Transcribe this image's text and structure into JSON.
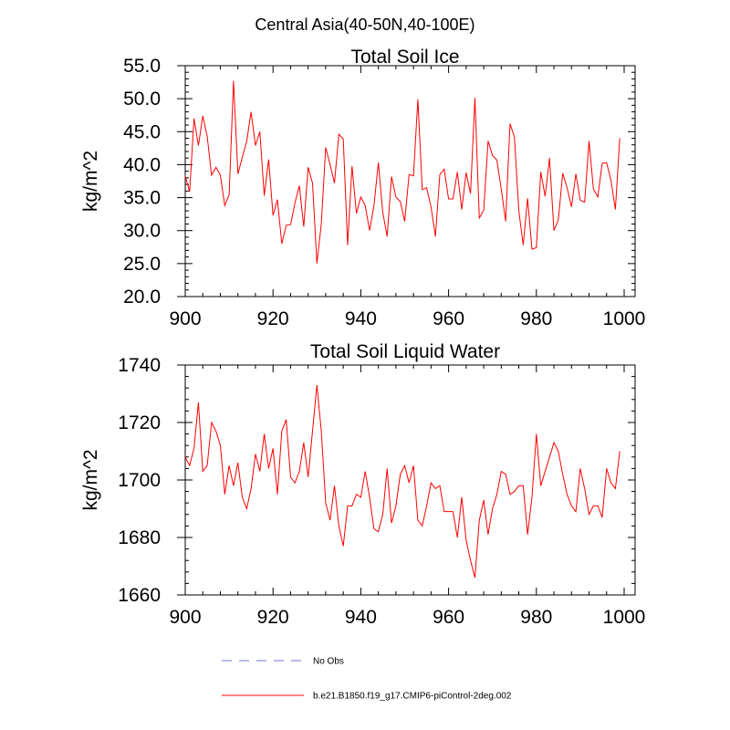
{
  "figure_title": "Central Asia(40-50N,40-100E)",
  "legend": {
    "entries": [
      {
        "label": "No Obs",
        "color": "#a0a0e8",
        "style": "dashed"
      },
      {
        "label": "b.e21.B1850.f19_g17.CMIP6-piControl-2deg.002",
        "color": "#ff0000",
        "style": "solid"
      }
    ]
  },
  "chart_data": [
    {
      "type": "line",
      "title": "Total Soil Ice",
      "xlabel": "",
      "ylabel": "kg/m^2",
      "xlim": [
        900,
        1000
      ],
      "ylim": [
        20,
        55
      ],
      "xticks": [
        900,
        920,
        940,
        960,
        980,
        1000
      ],
      "xtick_labels": [
        "900",
        "920",
        "940",
        "960",
        "980",
        "1000"
      ],
      "yticks": [
        20,
        25,
        30,
        35,
        40,
        45,
        50,
        55
      ],
      "ytick_labels": [
        "20.0",
        "25.0",
        "30.0",
        "35.0",
        "40.0",
        "45.0",
        "50.0",
        "55.0"
      ],
      "grid": false,
      "series": [
        {
          "name": "b.e21.B1850.f19_g17.CMIP6-piControl-2deg.002",
          "color": "#ff0000",
          "x": [
            900,
            901,
            902,
            903,
            904,
            905,
            906,
            907,
            908,
            909,
            910,
            911,
            912,
            913,
            914,
            915,
            916,
            917,
            918,
            919,
            920,
            921,
            922,
            923,
            924,
            925,
            926,
            927,
            928,
            929,
            930,
            931,
            932,
            933,
            934,
            935,
            936,
            937,
            938,
            939,
            940,
            941,
            942,
            943,
            944,
            945,
            946,
            947,
            948,
            949,
            950,
            951,
            952,
            953,
            954,
            955,
            956,
            957,
            958,
            959,
            960,
            961,
            962,
            963,
            964,
            965,
            966,
            967,
            968,
            969,
            970,
            971,
            972,
            973,
            974,
            975,
            976,
            977,
            978,
            979,
            980,
            981,
            982,
            983,
            984,
            985,
            986,
            987,
            988,
            989,
            990,
            991,
            992,
            993,
            994,
            995,
            996,
            997,
            998,
            999
          ],
          "values": [
            38.3,
            35.9,
            47.0,
            42.9,
            47.4,
            44.3,
            38.4,
            39.6,
            38.4,
            33.8,
            35.4,
            52.7,
            38.6,
            41.1,
            43.5,
            48.0,
            42.9,
            45.0,
            35.3,
            40.8,
            32.3,
            34.7,
            28.0,
            30.8,
            30.9,
            34.2,
            36.8,
            30.6,
            39.6,
            37.2,
            25.0,
            31.0,
            42.6,
            40.0,
            37.2,
            44.6,
            43.9,
            27.8,
            39.8,
            32.6,
            35.1,
            33.8,
            30.0,
            33.8,
            40.3,
            32.8,
            29.1,
            38.2,
            35.1,
            34.4,
            31.4,
            38.5,
            38.3,
            49.9,
            36.2,
            36.5,
            33.6,
            29.1,
            38.5,
            39.3,
            34.8,
            34.8,
            38.9,
            33.2,
            38.8,
            35.6,
            50.1,
            31.9,
            33.1,
            43.6,
            41.4,
            40.7,
            36.3,
            31.4,
            46.2,
            44.2,
            33.0,
            27.8,
            34.9,
            27.2,
            27.4,
            38.9,
            35.2,
            41.0,
            30.0,
            31.6,
            38.7,
            36.5,
            33.6,
            38.6,
            34.6,
            34.3,
            43.6,
            36.3,
            35.1,
            40.2,
            40.3,
            37.6,
            33.2,
            44.0
          ]
        }
      ]
    },
    {
      "type": "line",
      "title": "Total Soil Liquid Water",
      "xlabel": "",
      "ylabel": "kg/m^2",
      "xlim": [
        900,
        1000
      ],
      "ylim": [
        1660,
        1740
      ],
      "xticks": [
        900,
        920,
        940,
        960,
        980,
        1000
      ],
      "xtick_labels": [
        "900",
        "920",
        "940",
        "960",
        "980",
        "1000"
      ],
      "yticks": [
        1660,
        1680,
        1700,
        1720,
        1740
      ],
      "ytick_labels": [
        "1660",
        "1680",
        "1700",
        "1720",
        "1740"
      ],
      "grid": false,
      "series": [
        {
          "name": "b.e21.B1850.f19_g17.CMIP6-piControl-2deg.002",
          "color": "#ff0000",
          "x": [
            900,
            901,
            902,
            903,
            904,
            905,
            906,
            907,
            908,
            909,
            910,
            911,
            912,
            913,
            914,
            915,
            916,
            917,
            918,
            919,
            920,
            921,
            922,
            923,
            924,
            925,
            926,
            927,
            928,
            929,
            930,
            931,
            932,
            933,
            934,
            935,
            936,
            937,
            938,
            939,
            940,
            941,
            942,
            943,
            944,
            945,
            946,
            947,
            948,
            949,
            950,
            951,
            952,
            953,
            954,
            955,
            956,
            957,
            958,
            959,
            960,
            961,
            962,
            963,
            964,
            965,
            966,
            967,
            968,
            969,
            970,
            971,
            972,
            973,
            974,
            975,
            976,
            977,
            978,
            979,
            980,
            981,
            982,
            983,
            984,
            985,
            986,
            987,
            988,
            989,
            990,
            991,
            992,
            993,
            994,
            995,
            996,
            997,
            998,
            999
          ],
          "values": [
            1708,
            1705,
            1711,
            1727,
            1703,
            1705,
            1720,
            1717,
            1712,
            1695,
            1705,
            1698,
            1706,
            1694,
            1690,
            1697,
            1709,
            1703,
            1716,
            1704,
            1711,
            1695,
            1717,
            1721,
            1701,
            1699,
            1703,
            1713,
            1701,
            1717,
            1733,
            1717,
            1692,
            1686,
            1698,
            1684,
            1677,
            1691,
            1691,
            1695,
            1694,
            1703,
            1694,
            1683,
            1682,
            1688,
            1704,
            1685,
            1691,
            1702,
            1705,
            1699,
            1705,
            1686,
            1684,
            1691,
            1699,
            1697,
            1698,
            1689,
            1689,
            1689,
            1680,
            1694,
            1679,
            1672,
            1666,
            1686,
            1693,
            1681,
            1690,
            1695,
            1703,
            1702,
            1695,
            1696,
            1698,
            1698,
            1681,
            1694,
            1716,
            1698,
            1703,
            1708,
            1713,
            1710,
            1702,
            1695,
            1691,
            1689,
            1704,
            1697,
            1688,
            1691,
            1691,
            1687,
            1704,
            1699,
            1697,
            1710
          ]
        }
      ]
    }
  ]
}
